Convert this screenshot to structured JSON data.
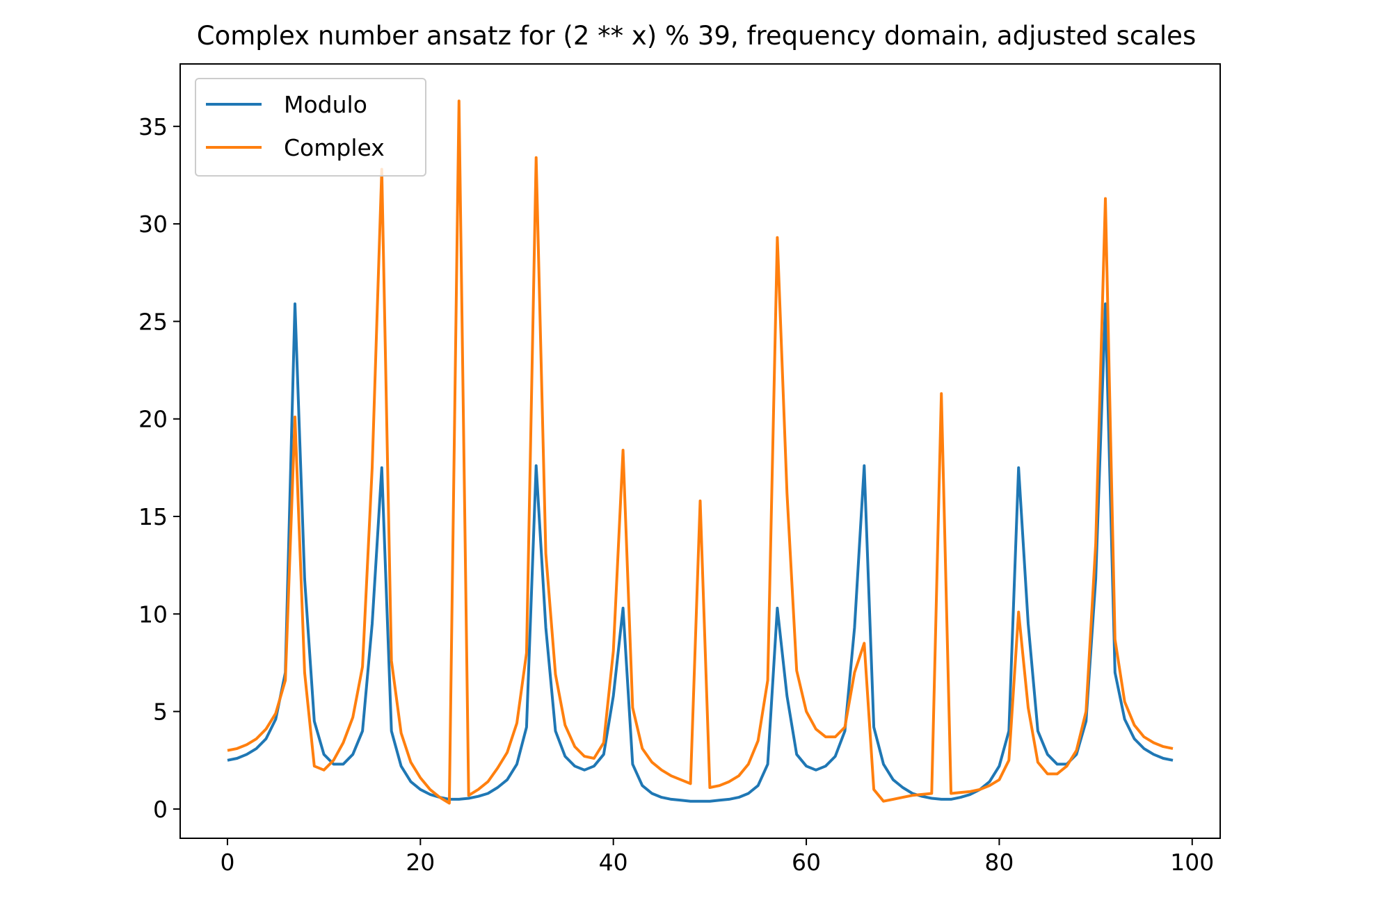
{
  "chart_data": {
    "type": "line",
    "title": "Complex number ansatz for (2 ** x) % 39, frequency domain, adjusted scales",
    "xlabel": "",
    "ylabel": "",
    "xlim": [
      -4.9,
      102.9
    ],
    "ylim": [
      -1.5,
      38.2
    ],
    "xticks": [
      0,
      20,
      40,
      60,
      80,
      100
    ],
    "yticks": [
      0,
      5,
      10,
      15,
      20,
      25,
      30,
      35
    ],
    "xtick_labels": [
      "0",
      "20",
      "40",
      "60",
      "80",
      "100"
    ],
    "ytick_labels": [
      "0",
      "5",
      "10",
      "15",
      "20",
      "25",
      "30",
      "35"
    ],
    "grid": false,
    "legend_position": "upper-left",
    "series": [
      {
        "name": "Modulo",
        "color": "#1f77b4",
        "x": [
          0,
          1,
          2,
          3,
          4,
          5,
          6,
          7,
          8,
          9,
          10,
          11,
          12,
          13,
          14,
          15,
          16,
          17,
          18,
          19,
          20,
          21,
          22,
          23,
          24,
          25,
          26,
          27,
          28,
          29,
          30,
          31,
          32,
          33,
          34,
          35,
          36,
          37,
          38,
          39,
          40,
          41,
          42,
          43,
          44,
          45,
          46,
          47,
          48,
          49,
          50,
          51,
          52,
          53,
          54,
          55,
          56,
          57,
          58,
          59,
          60,
          61,
          62,
          63,
          64,
          65,
          66,
          67,
          68,
          69,
          70,
          71,
          72,
          73,
          74,
          75,
          76,
          77,
          78,
          79,
          80,
          81,
          82,
          83,
          84,
          85,
          86,
          87,
          88,
          89,
          90,
          91,
          92,
          93,
          94,
          95,
          96,
          97,
          98
        ],
        "values": [
          2.5,
          2.6,
          2.8,
          3.1,
          3.6,
          4.6,
          7.0,
          25.9,
          11.8,
          4.5,
          2.8,
          2.3,
          2.3,
          2.8,
          4.0,
          9.5,
          17.5,
          4.0,
          2.2,
          1.4,
          1.0,
          0.75,
          0.6,
          0.5,
          0.5,
          0.55,
          0.65,
          0.8,
          1.1,
          1.5,
          2.3,
          4.2,
          17.6,
          9.3,
          4.0,
          2.7,
          2.2,
          2.0,
          2.2,
          2.8,
          5.8,
          10.3,
          2.3,
          1.2,
          0.8,
          0.6,
          0.5,
          0.45,
          0.4,
          0.4,
          0.4,
          0.45,
          0.5,
          0.6,
          0.8,
          1.2,
          2.3,
          10.3,
          5.8,
          2.8,
          2.2,
          2.0,
          2.2,
          2.7,
          4.0,
          9.3,
          17.6,
          4.2,
          2.3,
          1.5,
          1.1,
          0.8,
          0.65,
          0.55,
          0.5,
          0.5,
          0.6,
          0.75,
          1.0,
          1.4,
          2.2,
          4.0,
          17.5,
          9.5,
          4.0,
          2.8,
          2.3,
          2.3,
          2.8,
          4.5,
          11.8,
          25.9,
          7.0,
          4.6,
          3.6,
          3.1,
          2.8,
          2.6,
          2.5
        ]
      },
      {
        "name": "Complex",
        "color": "#ff7f0e",
        "x": [
          0,
          1,
          2,
          3,
          4,
          5,
          6,
          7,
          8,
          9,
          10,
          11,
          12,
          13,
          14,
          15,
          16,
          17,
          18,
          19,
          20,
          21,
          22,
          23,
          24,
          25,
          26,
          27,
          28,
          29,
          30,
          31,
          32,
          33,
          34,
          35,
          36,
          37,
          38,
          39,
          40,
          41,
          42,
          43,
          44,
          45,
          46,
          47,
          48,
          49,
          50,
          51,
          52,
          53,
          54,
          55,
          56,
          57,
          58,
          59,
          60,
          61,
          62,
          63,
          64,
          65,
          66,
          67,
          68,
          69,
          70,
          71,
          72,
          73,
          74,
          75,
          76,
          77,
          78,
          79,
          80,
          81,
          82,
          83,
          84,
          85,
          86,
          87,
          88,
          89,
          90,
          91,
          92,
          93,
          94,
          95,
          96,
          97,
          98
        ],
        "values": [
          3.0,
          3.1,
          3.3,
          3.6,
          4.1,
          4.9,
          6.6,
          20.1,
          7.0,
          2.2,
          2.0,
          2.5,
          3.4,
          4.7,
          7.3,
          17.5,
          32.8,
          7.6,
          3.9,
          2.4,
          1.6,
          1.0,
          0.6,
          0.3,
          36.3,
          0.7,
          1.0,
          1.4,
          2.1,
          2.9,
          4.4,
          8.0,
          33.4,
          13.1,
          6.9,
          4.3,
          3.2,
          2.7,
          2.6,
          3.4,
          8.1,
          18.4,
          5.2,
          3.1,
          2.4,
          2.0,
          1.7,
          1.5,
          1.3,
          15.8,
          1.1,
          1.2,
          1.4,
          1.7,
          2.3,
          3.5,
          6.6,
          29.3,
          16.2,
          7.1,
          5.0,
          4.1,
          3.7,
          3.7,
          4.2,
          7.0,
          8.5,
          1.0,
          0.4,
          0.5,
          0.6,
          0.7,
          0.75,
          0.8,
          21.3,
          0.8,
          0.85,
          0.9,
          1.0,
          1.2,
          1.5,
          2.5,
          10.1,
          5.2,
          2.4,
          1.8,
          1.8,
          2.2,
          3.0,
          5.0,
          13.6,
          31.3,
          8.7,
          5.5,
          4.3,
          3.7,
          3.4,
          3.2,
          3.1
        ]
      }
    ]
  }
}
